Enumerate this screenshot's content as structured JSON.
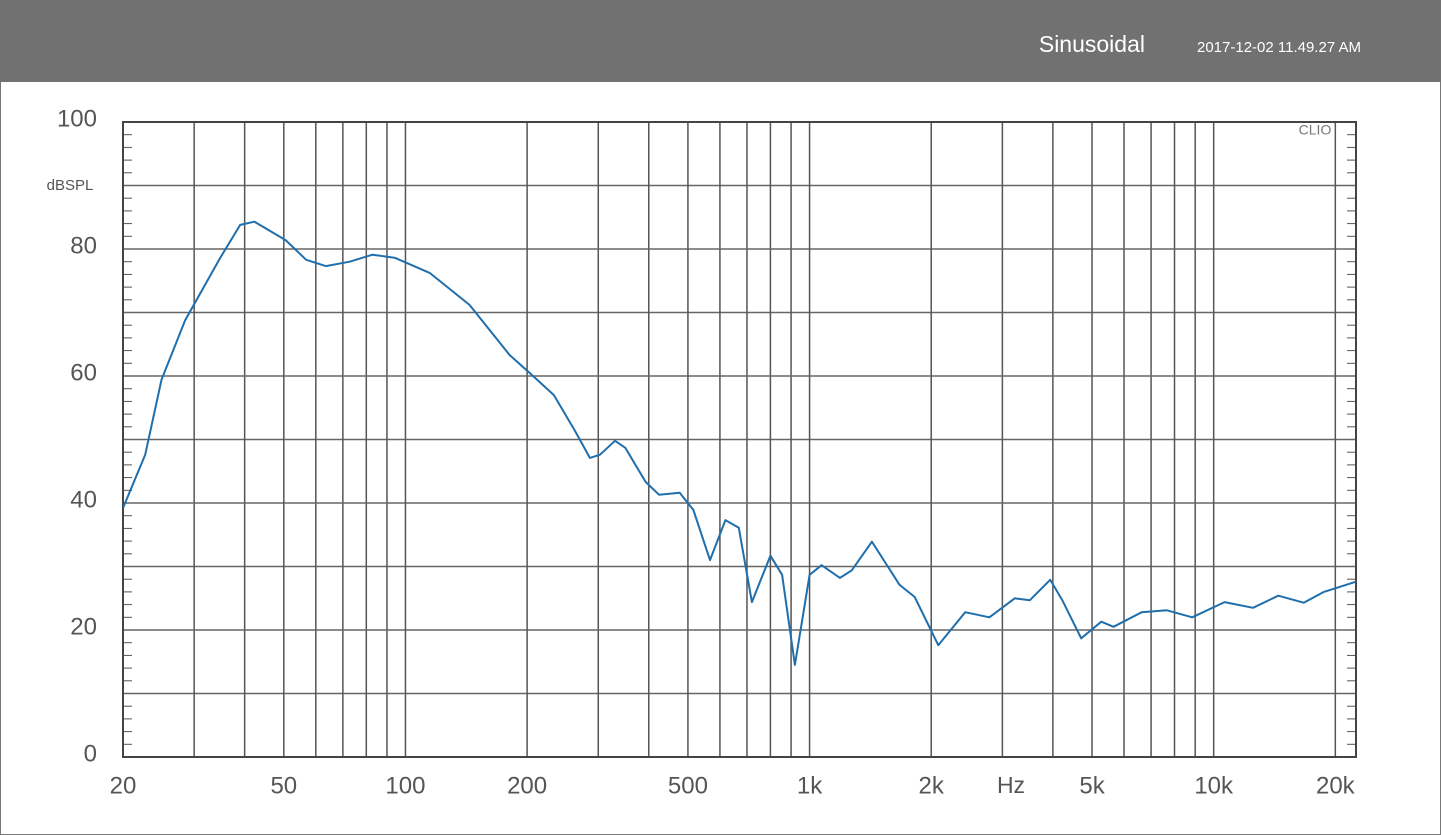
{
  "header": {
    "title": "Sinusoidal",
    "timestamp": "2017-12-02 11.49.27 AM"
  },
  "chart_data": {
    "type": "line",
    "y_label": "dBSPL",
    "x_label": "Hz",
    "watermark": "CLIO",
    "x_log": true,
    "grid": true,
    "xlim": [
      20,
      22500
    ],
    "ylim": [
      0,
      100
    ],
    "xticks": [
      20,
      50,
      100,
      200,
      500,
      {
        "value": 1000,
        "label": "1k"
      },
      {
        "value": 2000,
        "label": "2k"
      },
      {
        "value": 5000,
        "label": "5k"
      },
      {
        "value": 10000,
        "label": "10k"
      },
      {
        "value": 20000,
        "label": "20k"
      }
    ],
    "xminorticks": [
      30,
      40,
      60,
      70,
      80,
      90,
      300,
      400,
      600,
      700,
      800,
      900,
      3000,
      4000,
      6000,
      7000,
      8000,
      9000
    ],
    "yticks": [
      0,
      20,
      40,
      60,
      80,
      100
    ],
    "yminorticks": [
      10,
      30,
      50,
      70,
      90
    ],
    "y_small_tick_step": 2,
    "series": [
      {
        "color": "#1f6fad",
        "x": [
          20,
          22.7,
          24.9,
          28.5,
          34.8,
          39.0,
          42.3,
          50.5,
          56.8,
          63.5,
          72.8,
          82.9,
          94.3,
          115,
          144,
          181,
          202,
          233,
          262,
          286,
          303,
          330,
          350,
          393,
          424,
          477,
          516,
          567,
          619,
          668,
          720,
          800,
          855,
          920,
          1000,
          1071,
          1189,
          1272,
          1426,
          1670,
          1820,
          2082,
          2427,
          2786,
          3220,
          3510,
          3940,
          4220,
          4700,
          5270,
          5650,
          6640,
          7660,
          8850,
          10640,
          12510,
          14450,
          16700,
          18740,
          22500
        ],
        "values": [
          39.2,
          47.6,
          59.4,
          68.8,
          78.6,
          83.8,
          84.3,
          81.4,
          78.3,
          77.3,
          78,
          79.1,
          78.6,
          76.2,
          71.2,
          63.3,
          60.6,
          57,
          51.5,
          47.1,
          47.6,
          49.8,
          48.7,
          43.3,
          41.3,
          41.6,
          38.9,
          31,
          37.3,
          36.1,
          24.4,
          31.7,
          28.7,
          14.5,
          28.7,
          30.2,
          28.2,
          29.4,
          33.9,
          27.1,
          25.2,
          17.6,
          22.8,
          22,
          25,
          24.7,
          27.9,
          24.7,
          18.7,
          21.3,
          20.5,
          22.8,
          23.1,
          22,
          24.4,
          23.5,
          25.4,
          24.3,
          26,
          27.6
        ]
      }
    ]
  }
}
